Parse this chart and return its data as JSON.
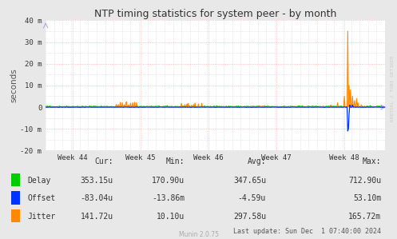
{
  "title": "NTP timing statistics for system peer - by month",
  "ylabel": "seconds",
  "background_color": "#e8e8e8",
  "plot_bg_color": "#ffffff",
  "major_grid_color": "#ff9999",
  "minor_grid_color": "#c8c8d8",
  "ylim": [
    -0.02,
    0.04
  ],
  "yticks": [
    -0.02,
    -0.01,
    0.0,
    0.01,
    0.02,
    0.03,
    0.04
  ],
  "ytick_labels": [
    "-20 m",
    "-10 m",
    "0",
    "10 m",
    "20 m",
    "30 m",
    "40 m"
  ],
  "xtick_labels": [
    "Week 44",
    "Week 45",
    "Week 46",
    "Week 47",
    "Week 48"
  ],
  "delay_color": "#00cc00",
  "offset_color": "#0033ff",
  "jitter_color": "#ff8800",
  "watermark": "RRDTOOL / TOBI OETIKER",
  "munin_version": "Munin 2.0.75",
  "last_update": "Last update: Sun Dec  1 07:40:00 2024",
  "legend": {
    "Delay": {
      "cur": "353.15u",
      "min": "170.90u",
      "avg": "347.65u",
      "max": "712.90u"
    },
    "Offset": {
      "cur": "-83.04u",
      "min": "-13.86m",
      "avg": "-4.59u",
      "max": "53.10m"
    },
    "Jitter": {
      "cur": "141.72u",
      "min": "10.10u",
      "avg": "297.58u",
      "max": "165.72m"
    }
  },
  "num_points": 500,
  "figwidth": 4.97,
  "figheight": 2.99,
  "dpi": 100
}
